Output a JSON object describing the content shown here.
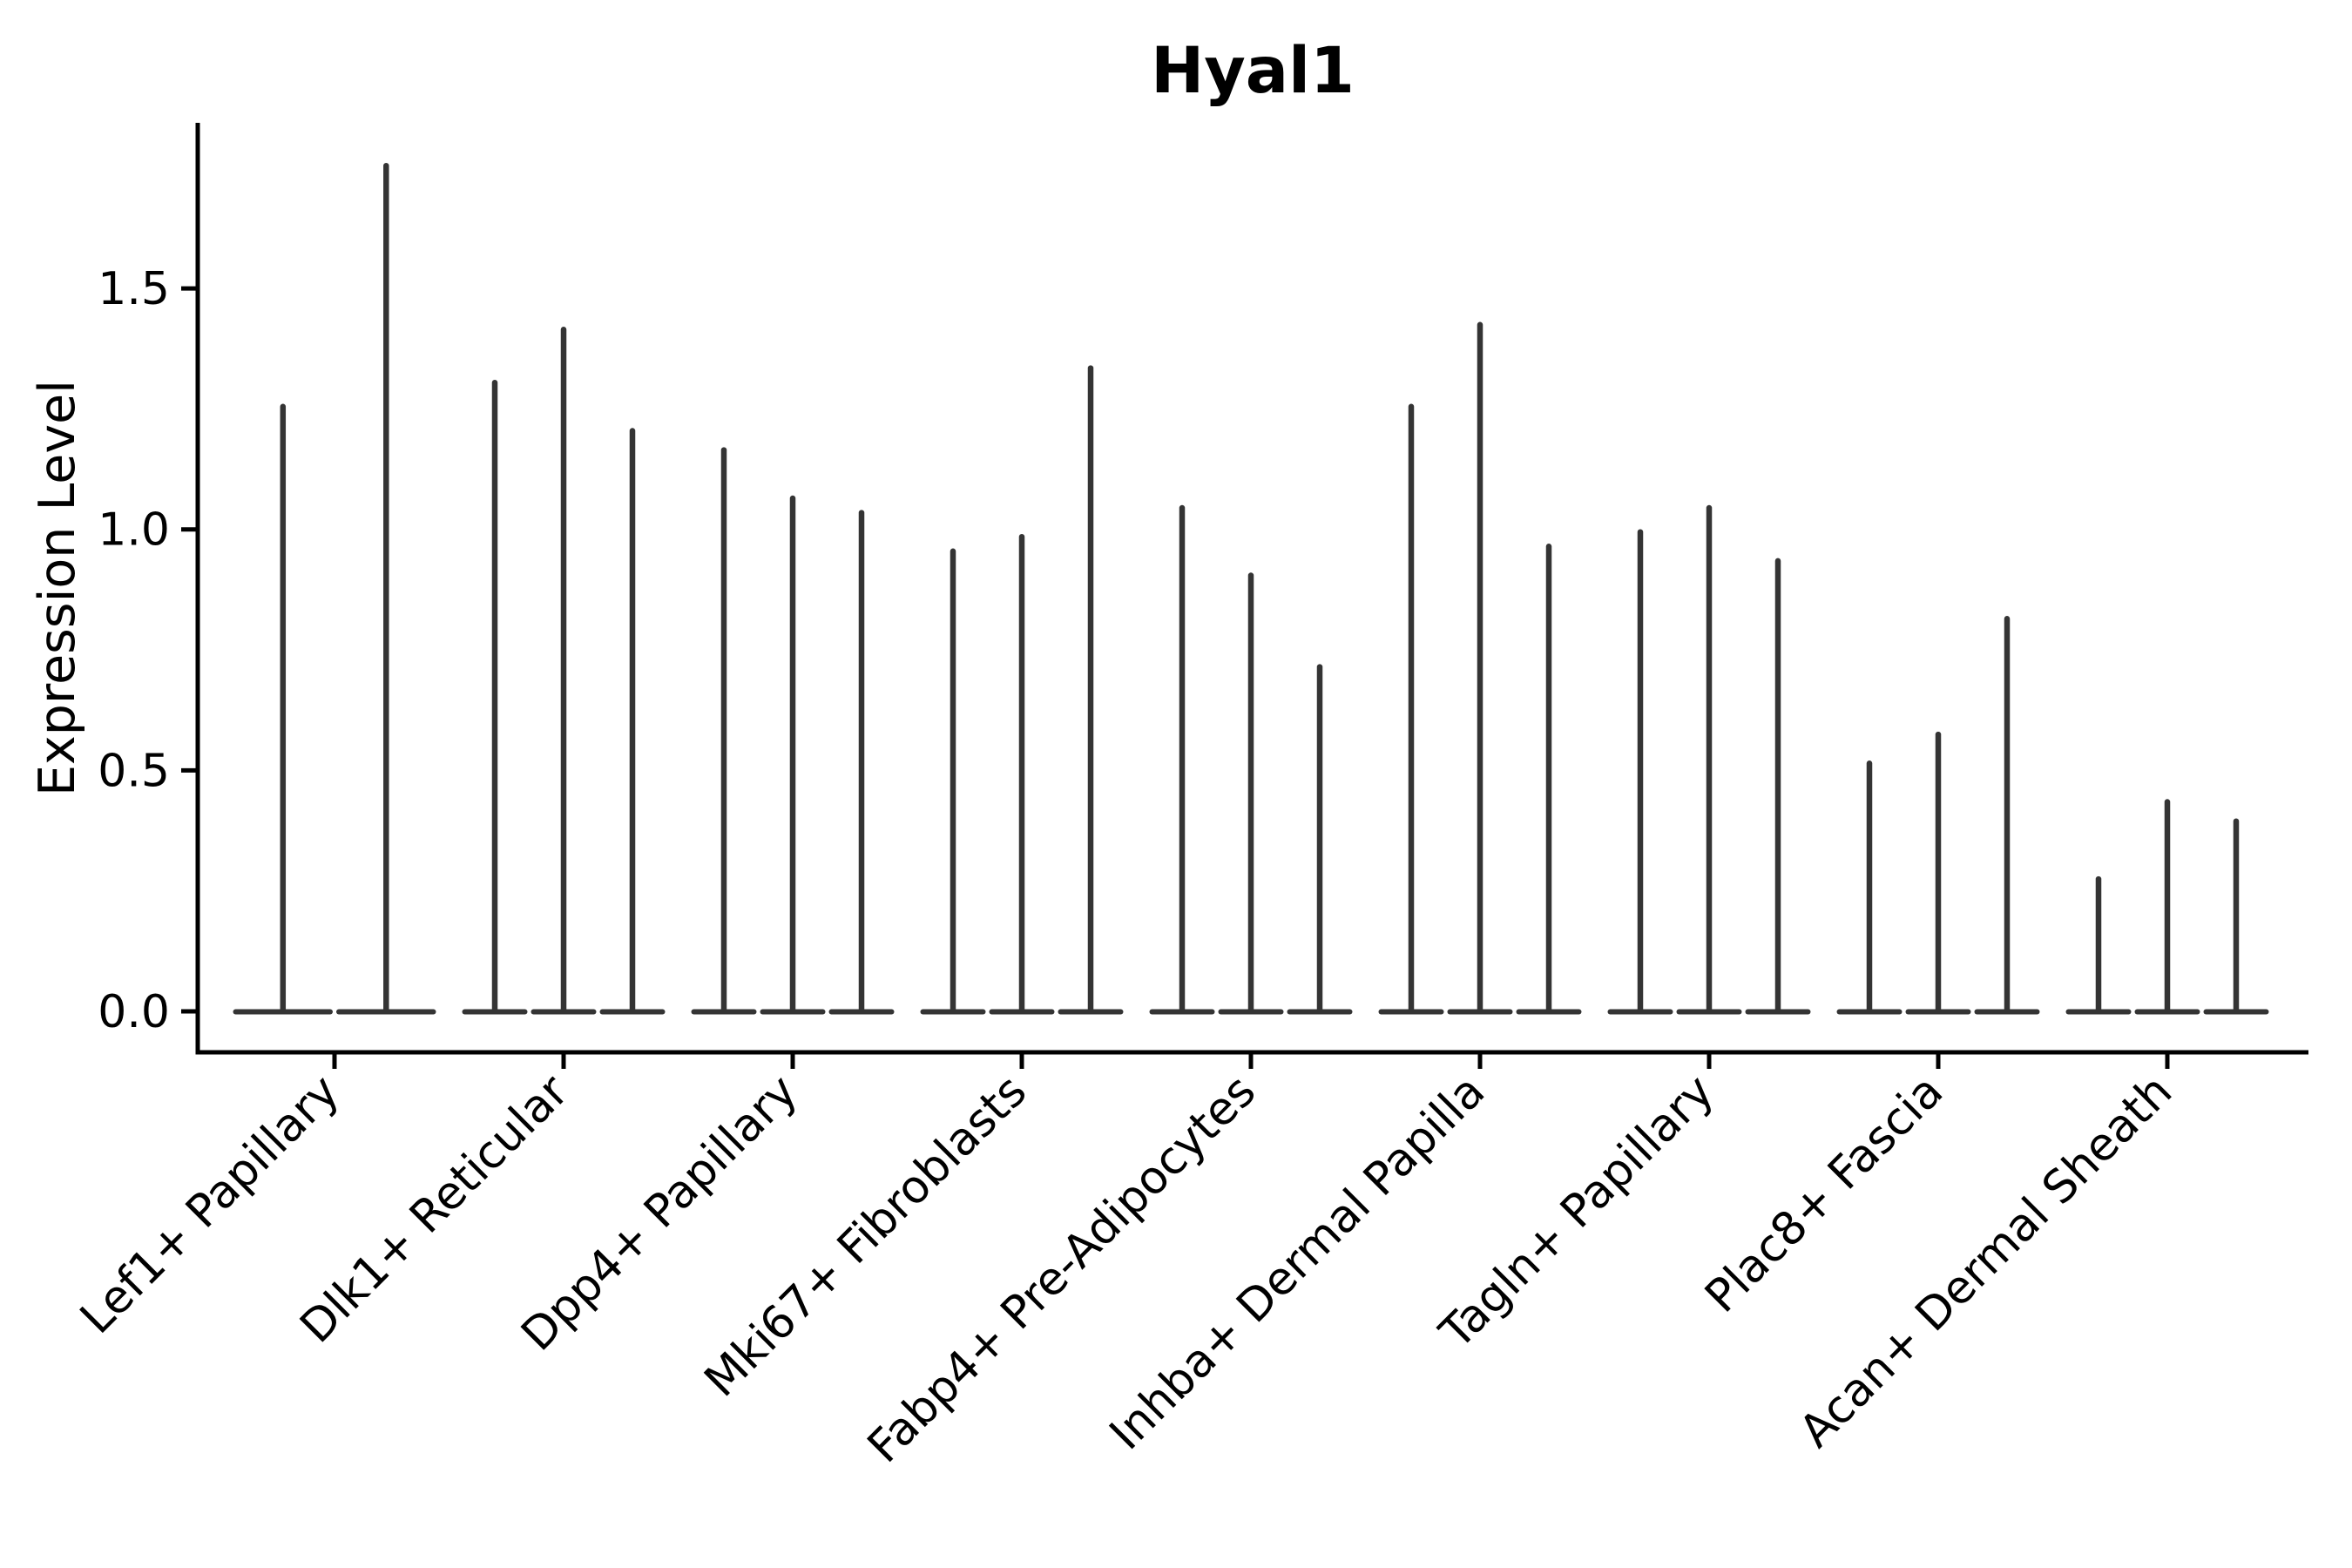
{
  "title": "Hyal1",
  "axes": {
    "ylabel": "Expression Level",
    "ytick_labels": [
      "0.0",
      "0.5",
      "1.0",
      "1.5"
    ]
  },
  "chart_data": {
    "type": "violin",
    "title": "Hyal1",
    "xlabel": "",
    "ylabel": "Expression Level",
    "yticks": [
      0.0,
      0.5,
      1.0,
      1.5
    ],
    "ylim": [
      -0.085,
      1.84
    ],
    "grid": false,
    "legend": "none",
    "description": "Violin plot of Hyal1 expression; each category holds narrow violins (most mass at 0 forming a flat base) whose spike tops reach the listed maximum expression level.",
    "categories": [
      "Lef1+ Papillary",
      "Dlk1+ Reticular",
      "Dpp4+ Papillary",
      "Mki67+ Fibroblasts",
      "Fabp4+ Pre-Adipocytes",
      "Inhba+ Dermal Papilla",
      "Tagln+ Papillary",
      "Plac8+ Fascia",
      "Acan+ Dermal Sheath"
    ],
    "groups": [
      {
        "category": "Lef1+ Papillary",
        "violin_maxima": [
          1.26,
          1.76
        ]
      },
      {
        "category": "Dlk1+ Reticular",
        "violin_maxima": [
          1.31,
          1.42,
          1.21
        ]
      },
      {
        "category": "Dpp4+ Papillary",
        "violin_maxima": [
          1.17,
          1.07,
          1.04
        ]
      },
      {
        "category": "Mki67+ Fibroblasts",
        "violin_maxima": [
          0.96,
          0.99,
          1.34
        ]
      },
      {
        "category": "Fabp4+ Pre-Adipocytes",
        "violin_maxima": [
          1.05,
          0.91,
          0.72
        ]
      },
      {
        "category": "Inhba+ Dermal Papilla",
        "violin_maxima": [
          1.26,
          1.43,
          0.97
        ]
      },
      {
        "category": "Tagln+ Papillary",
        "violin_maxima": [
          1.0,
          1.05,
          0.94
        ]
      },
      {
        "category": "Plac8+ Fascia",
        "violin_maxima": [
          0.52,
          0.58,
          0.82
        ]
      },
      {
        "category": "Acan+ Dermal Sheath",
        "violin_maxima": [
          0.28,
          0.44,
          0.4
        ]
      }
    ],
    "colors": {
      "violin": "#343434",
      "axis": "#000000",
      "text": "#000000",
      "background": "#ffffff"
    }
  }
}
